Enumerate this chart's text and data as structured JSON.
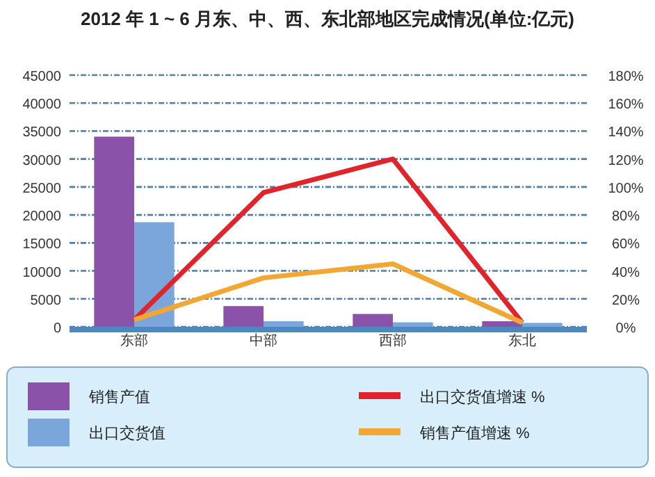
{
  "chart_data": {
    "type": "bar",
    "title": "2012 年 1 ~ 6 月东、中、西、东北部地区完成情况(单位:亿元)",
    "categories": [
      "东部",
      "中部",
      "西部",
      "东北"
    ],
    "series": [
      {
        "name": "销售产值",
        "color": "#8a52a8",
        "values": [
          34000,
          3700,
          2300,
          1000
        ]
      },
      {
        "name": "出口交货值",
        "color": "#7aa6dc",
        "values": [
          18700,
          1000,
          800,
          700
        ]
      },
      {
        "name": "出口交货值增速 %",
        "type": "line",
        "axis": "y2",
        "color": "#e0242c",
        "values": [
          5,
          96,
          120,
          3
        ]
      },
      {
        "name": "销售产值增速 %",
        "type": "line",
        "axis": "y2",
        "color": "#f2a735",
        "values": [
          5,
          35,
          45,
          3
        ]
      }
    ],
    "ylim": [
      0,
      45000
    ],
    "yticks": [
      0,
      5000,
      10000,
      15000,
      20000,
      25000,
      30000,
      35000,
      40000,
      45000
    ],
    "y2lim": [
      0,
      180
    ],
    "y2ticks": [
      {
        "value": 0,
        "label": "0%"
      },
      {
        "value": 20,
        "label": "20%"
      },
      {
        "value": 40,
        "label": "40%"
      },
      {
        "value": 60,
        "label": "60%"
      },
      {
        "value": 80,
        "label": "80%"
      },
      {
        "value": 100,
        "label": "100%"
      },
      {
        "value": 120,
        "label": "120%"
      },
      {
        "value": 140,
        "label": "140%"
      },
      {
        "value": 160,
        "label": "160%"
      },
      {
        "value": 180,
        "label": "180%"
      }
    ],
    "grid": "y",
    "legend": "bottom",
    "line_style": "solid",
    "marker": "none"
  }
}
